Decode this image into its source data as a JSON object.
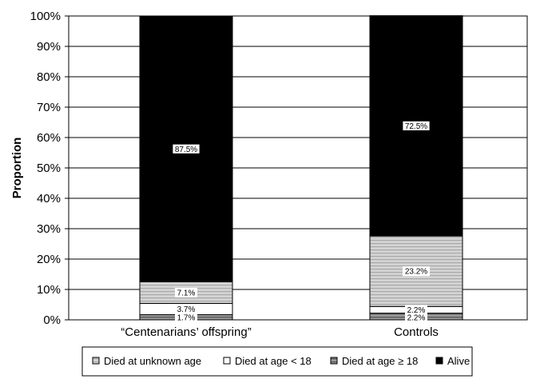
{
  "chart_data": {
    "type": "bar",
    "stacked": true,
    "ylabel": "Proportion",
    "xlabel": "",
    "ylim": [
      0,
      100
    ],
    "yticks": [
      "0%",
      "10%",
      "20%",
      "30%",
      "40%",
      "50%",
      "60%",
      "70%",
      "80%",
      "90%",
      "100%"
    ],
    "grid": true,
    "legend_position": "bottom",
    "categories": [
      "“Centenarians’ offspring”",
      "Controls"
    ],
    "series": [
      {
        "name": "Died at age ≥ 18",
        "values": [
          1.7,
          2.2
        ],
        "labels": [
          "1.7%",
          "2.2%"
        ],
        "color": "#888888"
      },
      {
        "name": "Died at age < 18",
        "values": [
          3.7,
          2.2
        ],
        "labels": [
          "3.7%",
          "2.2%"
        ],
        "color": "#ffffff"
      },
      {
        "name": "Died at unknown age",
        "values": [
          7.1,
          23.2
        ],
        "labels": [
          "7.1%",
          "23.2%"
        ],
        "color": "#c8c8c8"
      },
      {
        "name": "Alive",
        "values": [
          87.5,
          72.5
        ],
        "labels": [
          "87.5%",
          "72.5%"
        ],
        "color": "#000000"
      }
    ],
    "legend_order": [
      "Died at unknown age",
      "Died at age < 18",
      "Died at age ≥ 18",
      "Alive"
    ]
  }
}
